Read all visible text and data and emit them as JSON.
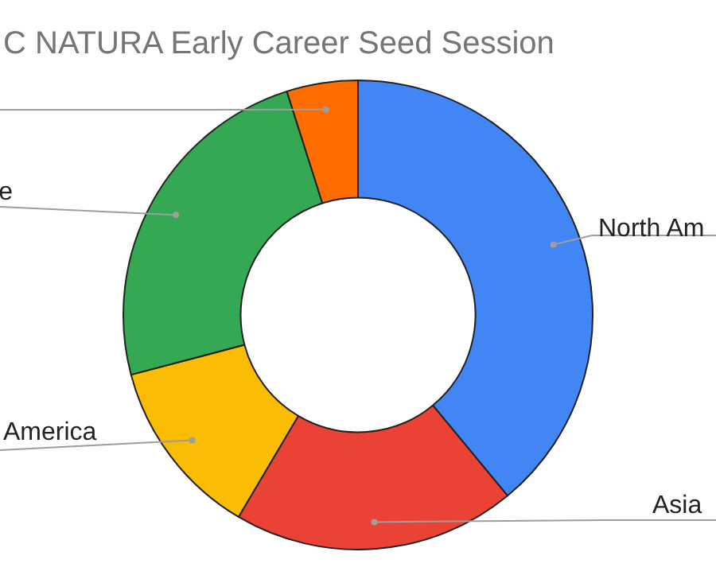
{
  "chart_data": {
    "type": "donut",
    "title": "C NATURA Early Career Seed Session",
    "categories": [
      "North Am",
      "Asia",
      "America",
      "e",
      null
    ],
    "values": [
      39,
      19.5,
      12.4,
      24.2,
      4.9
    ],
    "colors": [
      "#4285f4",
      "#ea4335",
      "#fbbc04",
      "#34a853",
      "#ff6d01"
    ],
    "legend": false
  }
}
